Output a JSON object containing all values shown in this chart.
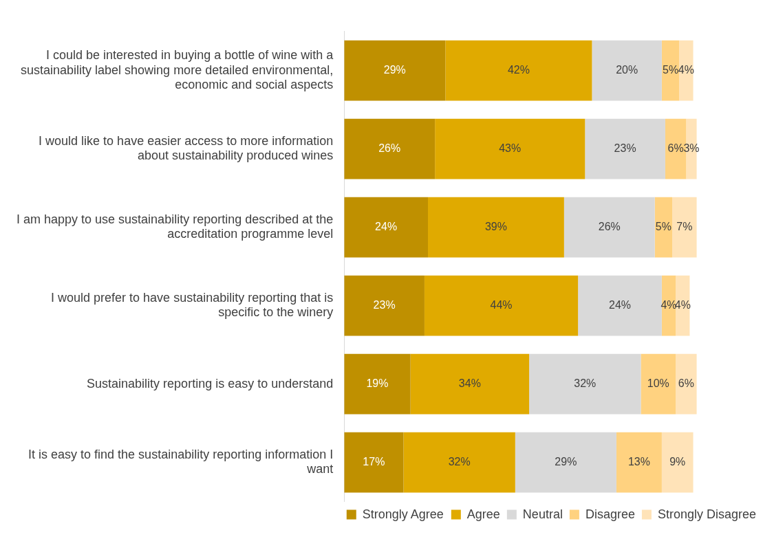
{
  "chart_data": {
    "type": "bar",
    "orientation": "horizontal",
    "stacked": true,
    "categories": [
      "I could be interested in buying a bottle of wine with a sustainability label showing more detailed environmental, economic and social aspects",
      "I would like to have easier access to more information about sustainability produced wines",
      "I am happy to use sustainability reporting described at the accreditation programme level",
      "I would prefer to have sustainability reporting that is specific to the winery",
      "Sustainability reporting is easy to understand",
      "It is easy to find the sustainability reporting information I want"
    ],
    "series": [
      {
        "name": "Strongly Agree",
        "color": "#bf9000",
        "values": [
          29,
          26,
          24,
          23,
          19,
          17
        ],
        "value_labels": [
          "29%",
          "26%",
          "24%",
          "23%",
          "19%",
          "17%"
        ]
      },
      {
        "name": "Agree",
        "color": "#e0aa00",
        "values": [
          42,
          43,
          39,
          44,
          34,
          32
        ],
        "value_labels": [
          "42%",
          "43%",
          "39%",
          "44%",
          "34%",
          "32%"
        ]
      },
      {
        "name": "Neutral",
        "color": "#d9d9d9",
        "values": [
          20,
          23,
          26,
          24,
          32,
          29
        ],
        "value_labels": [
          "20%",
          "23%",
          "26%",
          "24%",
          "32%",
          "29%"
        ]
      },
      {
        "name": "Disagree",
        "color": "#ffd280",
        "values": [
          5,
          6,
          5,
          4,
          10,
          13
        ],
        "value_labels": [
          "5%",
          "6%",
          "5%",
          "4%",
          "10%",
          "13%"
        ]
      },
      {
        "name": "Strongly Disagree",
        "color": "#ffe3b8",
        "values": [
          4,
          3,
          7,
          4,
          6,
          9
        ],
        "value_labels": [
          "4%",
          "3%",
          "7%",
          "4%",
          "6%",
          "9%"
        ]
      }
    ],
    "legend": "bottom",
    "grid": false,
    "tick_labels": "y"
  }
}
